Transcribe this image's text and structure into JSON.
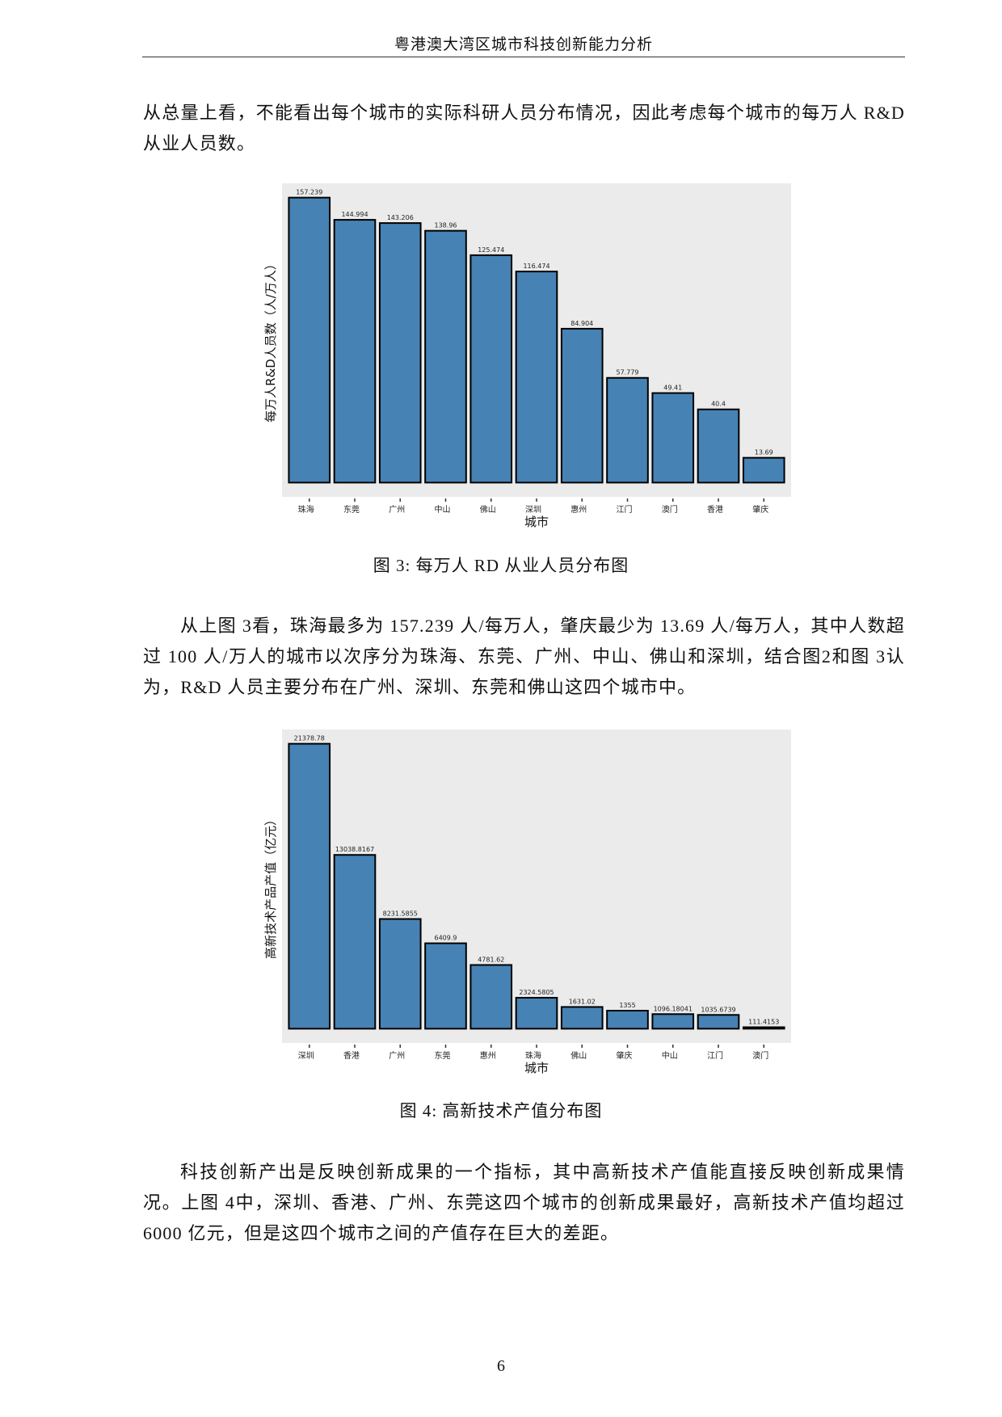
{
  "header": {
    "title": "粤港澳大湾区城市科技创新能力分析"
  },
  "paragraphs": [
    "从总量上看，不能看出每个城市的实际科研人员分布情况，因此考虑每个城市的每万人 R&D 从业人员数。",
    "从上图 3看，珠海最多为 157.239 人/每万人，肇庆最少为 13.69 人/每万人，其中人数超过 100 人/万人的城市以次序分为珠海、东莞、广州、中山、佛山和深圳，结合图2和图 3认为，R&D 人员主要分布在广州、深圳、东莞和佛山这四个城市中。",
    "科技创新产出是反映创新成果的一个指标，其中高新技术产值能直接反映创新成果情况。上图 4中，深圳、香港、广州、东莞这四个城市的创新成果最好，高新技术产值均超过 6000 亿元，但是这四个城市之间的产值存在巨大的差距。"
  ],
  "captions": [
    "图 3: 每万人 RD 从业人员分布图",
    "图 4: 高新技术产值分布图"
  ],
  "page_number": "6",
  "colors": {
    "bar": "#4682B4",
    "panel": "#EBEBEB",
    "outline": "#000000"
  },
  "chart_data": [
    {
      "type": "bar",
      "title": "",
      "xlabel": "城市",
      "ylabel": "每万人R&D人员数（人/万人）",
      "categories": [
        "珠海",
        "东莞",
        "广州",
        "中山",
        "佛山",
        "深圳",
        "惠州",
        "江门",
        "澳门",
        "香港",
        "肇庆"
      ],
      "values": [
        157.239,
        144.994,
        143.206,
        138.96,
        125.474,
        116.474,
        84.904,
        57.779,
        49.41,
        40.4,
        13.69
      ],
      "labels": [
        "157.239",
        "144.994",
        "143.206",
        "138.96",
        "125.474",
        "116.474",
        "84.904",
        "57.779",
        "49.41",
        "40.4",
        "13.69"
      ],
      "ylim": [
        0,
        165.1
      ],
      "grid": false
    },
    {
      "type": "bar",
      "title": "",
      "xlabel": "城市",
      "ylabel": "高新技术产品产值（亿元）",
      "categories": [
        "深圳",
        "香港",
        "广州",
        "东莞",
        "惠州",
        "珠海",
        "佛山",
        "肇庆",
        "中山",
        "江门",
        "澳门"
      ],
      "values": [
        21378.78,
        13038.8167,
        8231.5855,
        6409.9,
        4781.62,
        2324.5805,
        1631.02,
        1355,
        1096.18041,
        1035.6739,
        111.4153
      ],
      "labels": [
        "21378.78",
        "13038.8167",
        "8231.5855",
        "6409.9",
        "4781.62",
        "2324.5805",
        "1631.02",
        "1355",
        "1096.18041",
        "1035.6739",
        "111.4153"
      ],
      "ylim": [
        0,
        22447.7
      ],
      "grid": false
    }
  ]
}
